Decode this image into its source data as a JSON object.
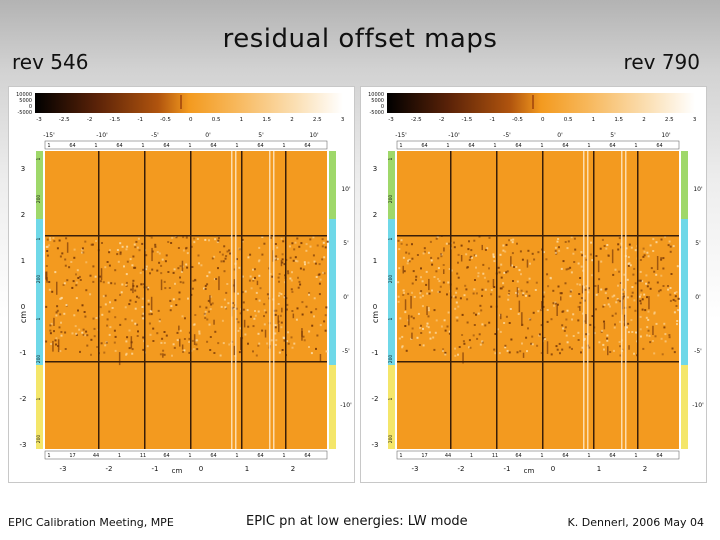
{
  "slide": {
    "title": "residual offset maps",
    "rev_left": "rev 546",
    "rev_right": "rev 790",
    "footer_left": "EPIC Calibration Meeting, MPE",
    "footer_center": "EPIC pn at low energies: LW mode",
    "footer_right": "K. Dennerl, 2006 May 04"
  },
  "map_labels": {
    "colorbar_side": [
      "10000",
      "5000",
      "0",
      "-5000"
    ],
    "colorbar_ticks": [
      "-3",
      "-2.5",
      "-2",
      "-1.5",
      "-1",
      "-0.5",
      "0",
      "0.5",
      "1",
      "1.5",
      "2",
      "2.5",
      "3"
    ],
    "arcmin_top_ticks": [
      "-15'",
      "-10'",
      "-5'",
      "0'",
      "5'",
      "10'"
    ],
    "arcmin_right_ticks": [
      "10'",
      "5'",
      "0'",
      "-5'",
      "-10'"
    ],
    "cm_left_ticks": [
      "3",
      "2",
      "1",
      "0",
      "-1",
      "-2",
      "-3"
    ],
    "cm_bottom_ticks": [
      "-3",
      "-2",
      "-1",
      "0",
      "1",
      "2"
    ],
    "cm_axis_label": "cm",
    "ccd_top_numbers": [
      "1",
      "64",
      "1",
      "64",
      "1",
      "64",
      "1",
      "64",
      "1",
      "64",
      "1",
      "64"
    ],
    "ccd_bottom_numbers": [
      "1",
      "17",
      "44",
      "1",
      "11",
      "64",
      "1",
      "64",
      "1",
      "64",
      "1",
      "64"
    ],
    "ccd_side_numbers": [
      "1",
      "200",
      "1",
      "200",
      "1",
      "200",
      "1",
      "200"
    ]
  },
  "colors": {
    "map_orange": "#f39a1f",
    "map_dark": "#7a3a08",
    "quadrant_line": "#3a1e08",
    "side_green": "#9fd86a",
    "side_cyan": "#6fd8e8",
    "side_yellow": "#f4e66a"
  }
}
